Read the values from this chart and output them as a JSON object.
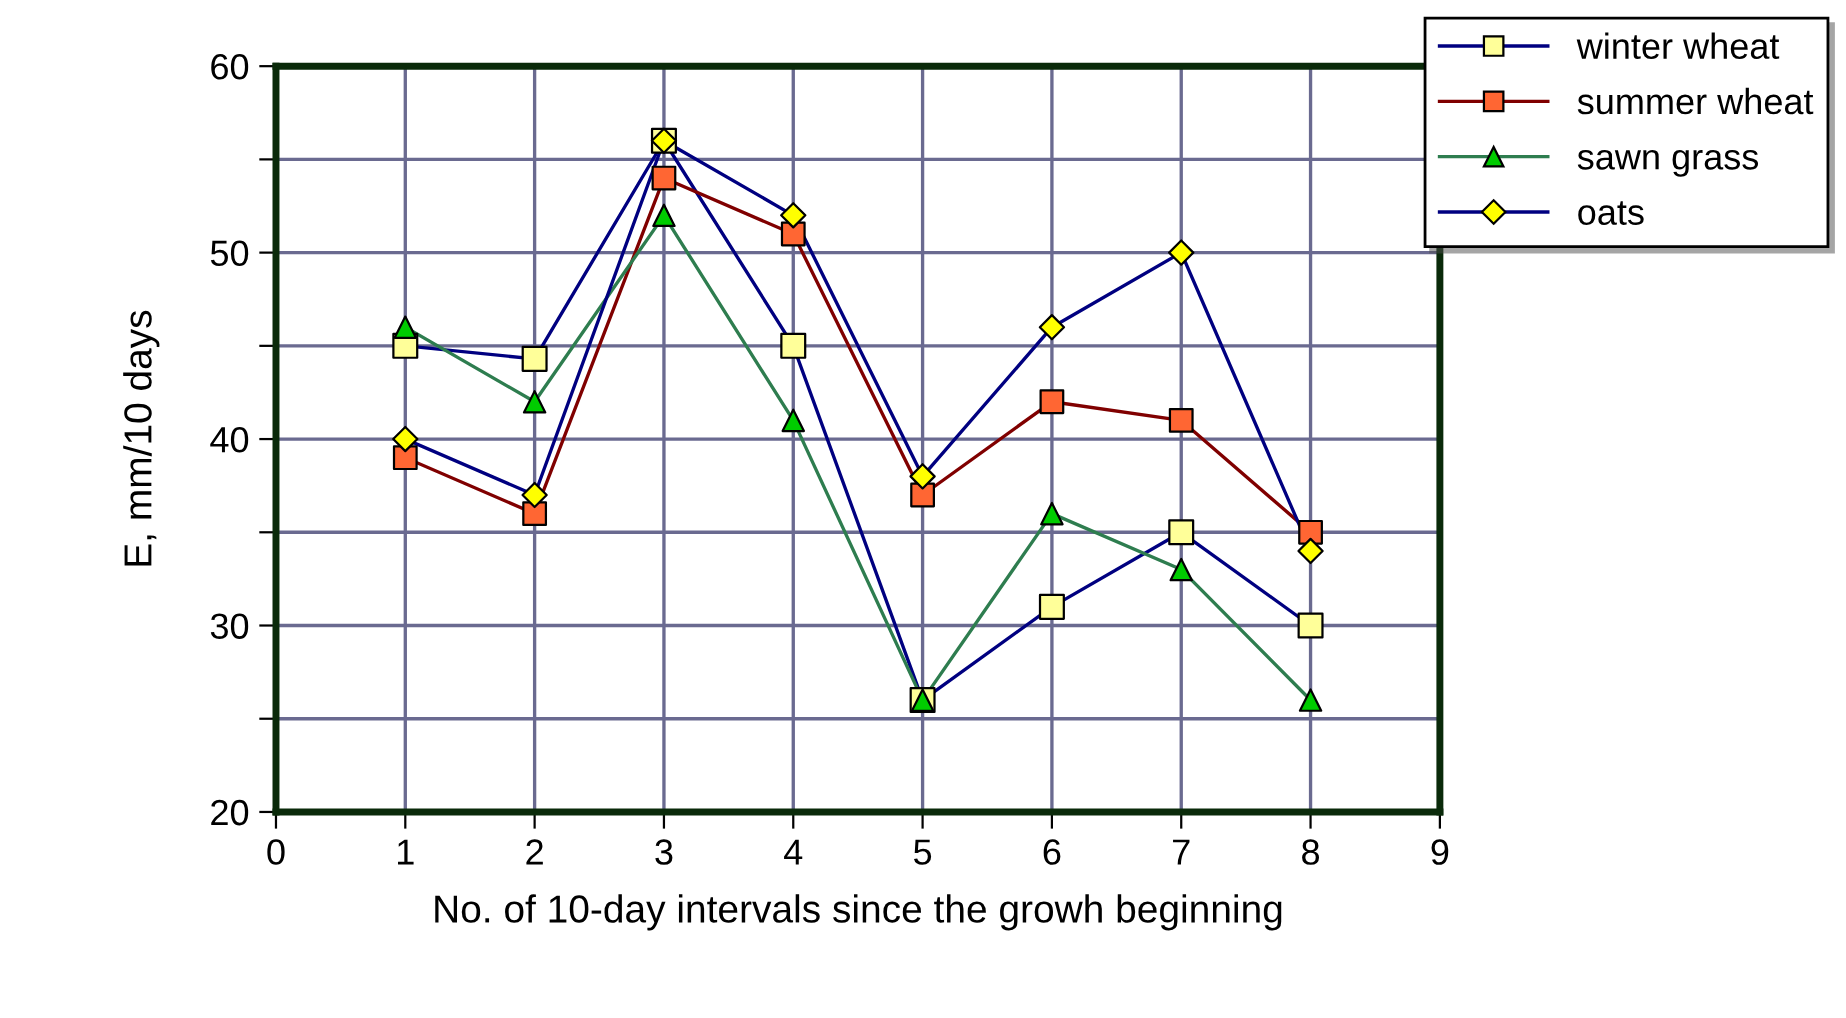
{
  "chart_data": {
    "type": "line",
    "xlabel": "No. of 10-day intervals since the growh beginning",
    "ylabel": "E, mm/10 days",
    "x": [
      1,
      2,
      3,
      4,
      5,
      6,
      7,
      8
    ],
    "series": [
      {
        "name": "winter wheat",
        "color": "#000080",
        "marker": "square",
        "colors": [
          "#ffff99",
          "#ffff99",
          "#ffff99",
          "#ffff99",
          "#ffff99",
          "#ffff99",
          "#ffff99",
          "#ffff99"
        ],
        "values": [
          45,
          44.3,
          56,
          45,
          26,
          31,
          35,
          30
        ]
      },
      {
        "name": "summer wheat",
        "color": "#800000",
        "marker": "square",
        "colors": [
          "#ff6633",
          "#ff6633",
          "#ff6633",
          "#ff6633",
          "#ff6633",
          "#ff6633",
          "#ff6633",
          "#ff6633"
        ],
        "values": [
          39,
          36,
          54,
          51,
          37,
          42,
          41,
          35
        ]
      },
      {
        "name": "sawn grass",
        "color": "#2e7d4f",
        "marker": "triangle",
        "colors": [
          "#00cc00",
          "#00cc00",
          "#00cc00",
          "#00cc00",
          "#00cc00",
          "#00cc00",
          "#00cc00",
          "#00cc00"
        ],
        "values": [
          46,
          42,
          52,
          41,
          26,
          36,
          33,
          26
        ]
      },
      {
        "name": "oats",
        "color": "#000080",
        "marker": "diamond",
        "colors": [
          "#ffff00",
          "#ffff00",
          "#ffff00",
          "#ffff00",
          "#ffff00",
          "#ffff00",
          "#ffff00",
          "#ffff00"
        ],
        "values": [
          40,
          37,
          56,
          52,
          38,
          46,
          50,
          34
        ]
      }
    ],
    "xlim": [
      0,
      9
    ],
    "xticks": [
      0,
      1,
      2,
      3,
      4,
      5,
      6,
      7,
      8,
      9
    ],
    "ylim": [
      20,
      60
    ],
    "yticks": [
      20,
      {
        "value": 25,
        "label": null
      },
      30,
      {
        "value": 35,
        "label": null
      },
      40,
      {
        "value": 45,
        "label": null
      },
      50,
      {
        "value": 55,
        "label": null
      },
      60
    ],
    "grid": true,
    "legend": "top right",
    "line_style": "solid"
  }
}
